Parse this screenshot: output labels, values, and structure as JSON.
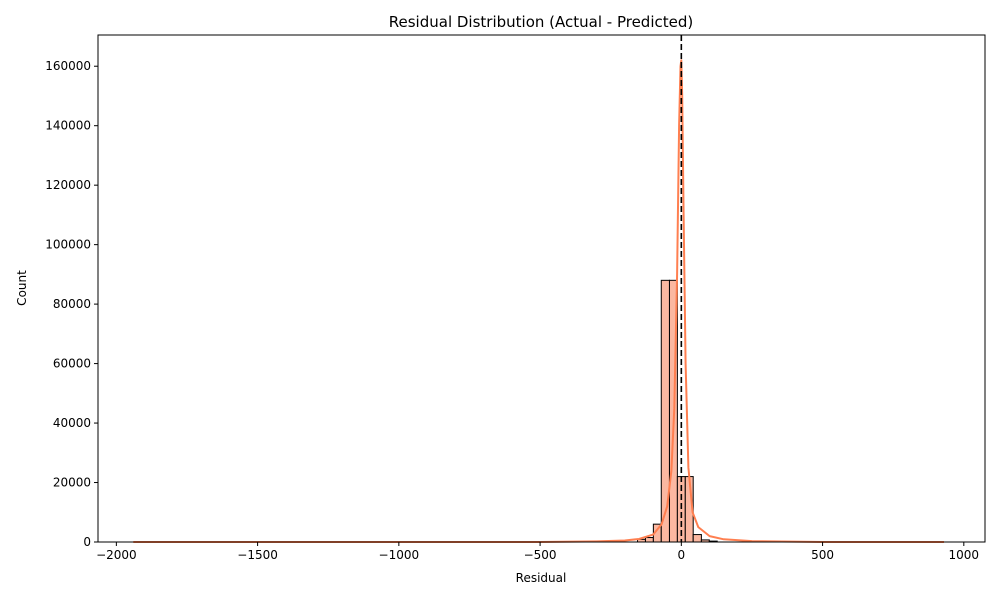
{
  "chart_data": {
    "type": "bar",
    "title": "Residual Distribution (Actual - Predicted)",
    "xlabel": "Residual",
    "ylabel": "Count",
    "xlim": [
      -2065,
      1075
    ],
    "ylim": [
      0,
      170500
    ],
    "x_ticks": [
      -2000,
      -1500,
      -1000,
      -500,
      0,
      500,
      1000
    ],
    "x_tick_labels": [
      "−2000",
      "−1500",
      "−1000",
      "−500",
      "0",
      "500",
      "1000"
    ],
    "y_ticks": [
      0,
      20000,
      40000,
      60000,
      80000,
      100000,
      120000,
      140000,
      160000
    ],
    "y_tick_labels": [
      "0",
      "20000",
      "40000",
      "60000",
      "80000",
      "100000",
      "120000",
      "140000",
      "160000"
    ],
    "grid": false,
    "bins": [
      {
        "x0": -155,
        "x1": -127,
        "count": 900
      },
      {
        "x0": -127,
        "x1": -99,
        "count": 1500
      },
      {
        "x0": -99,
        "x1": -71,
        "count": 6000
      },
      {
        "x0": -71,
        "x1": -42,
        "count": 88000
      },
      {
        "x0": -42,
        "x1": -14,
        "count": 88000
      },
      {
        "x0": -14,
        "x1": 14,
        "count": 22000
      },
      {
        "x0": 14,
        "x1": 42,
        "count": 22000
      },
      {
        "x0": 42,
        "x1": 71,
        "count": 2500
      },
      {
        "x0": 71,
        "x1": 99,
        "count": 700
      },
      {
        "x0": 99,
        "x1": 127,
        "count": 300
      }
    ],
    "kde": {
      "x": [
        -1940,
        -1500,
        -1000,
        -500,
        -300,
        -200,
        -150,
        -100,
        -70,
        -50,
        -35,
        -25,
        -15,
        -8,
        -3,
        0,
        3,
        8,
        15,
        25,
        40,
        60,
        100,
        150,
        250,
        500,
        930
      ],
      "y": [
        0,
        0,
        0,
        0,
        200,
        500,
        1000,
        2500,
        6000,
        12000,
        24000,
        45000,
        90000,
        140000,
        160000,
        162000,
        150000,
        110000,
        60000,
        25000,
        10000,
        5000,
        2000,
        900,
        300,
        0,
        0
      ]
    },
    "reference_line": {
      "x": 0,
      "style": "dashed",
      "color": "#000000"
    },
    "colors": {
      "bar_fill": "#fbb8a1",
      "bar_edge": "#000000",
      "kde_line": "#ff7f50"
    }
  }
}
